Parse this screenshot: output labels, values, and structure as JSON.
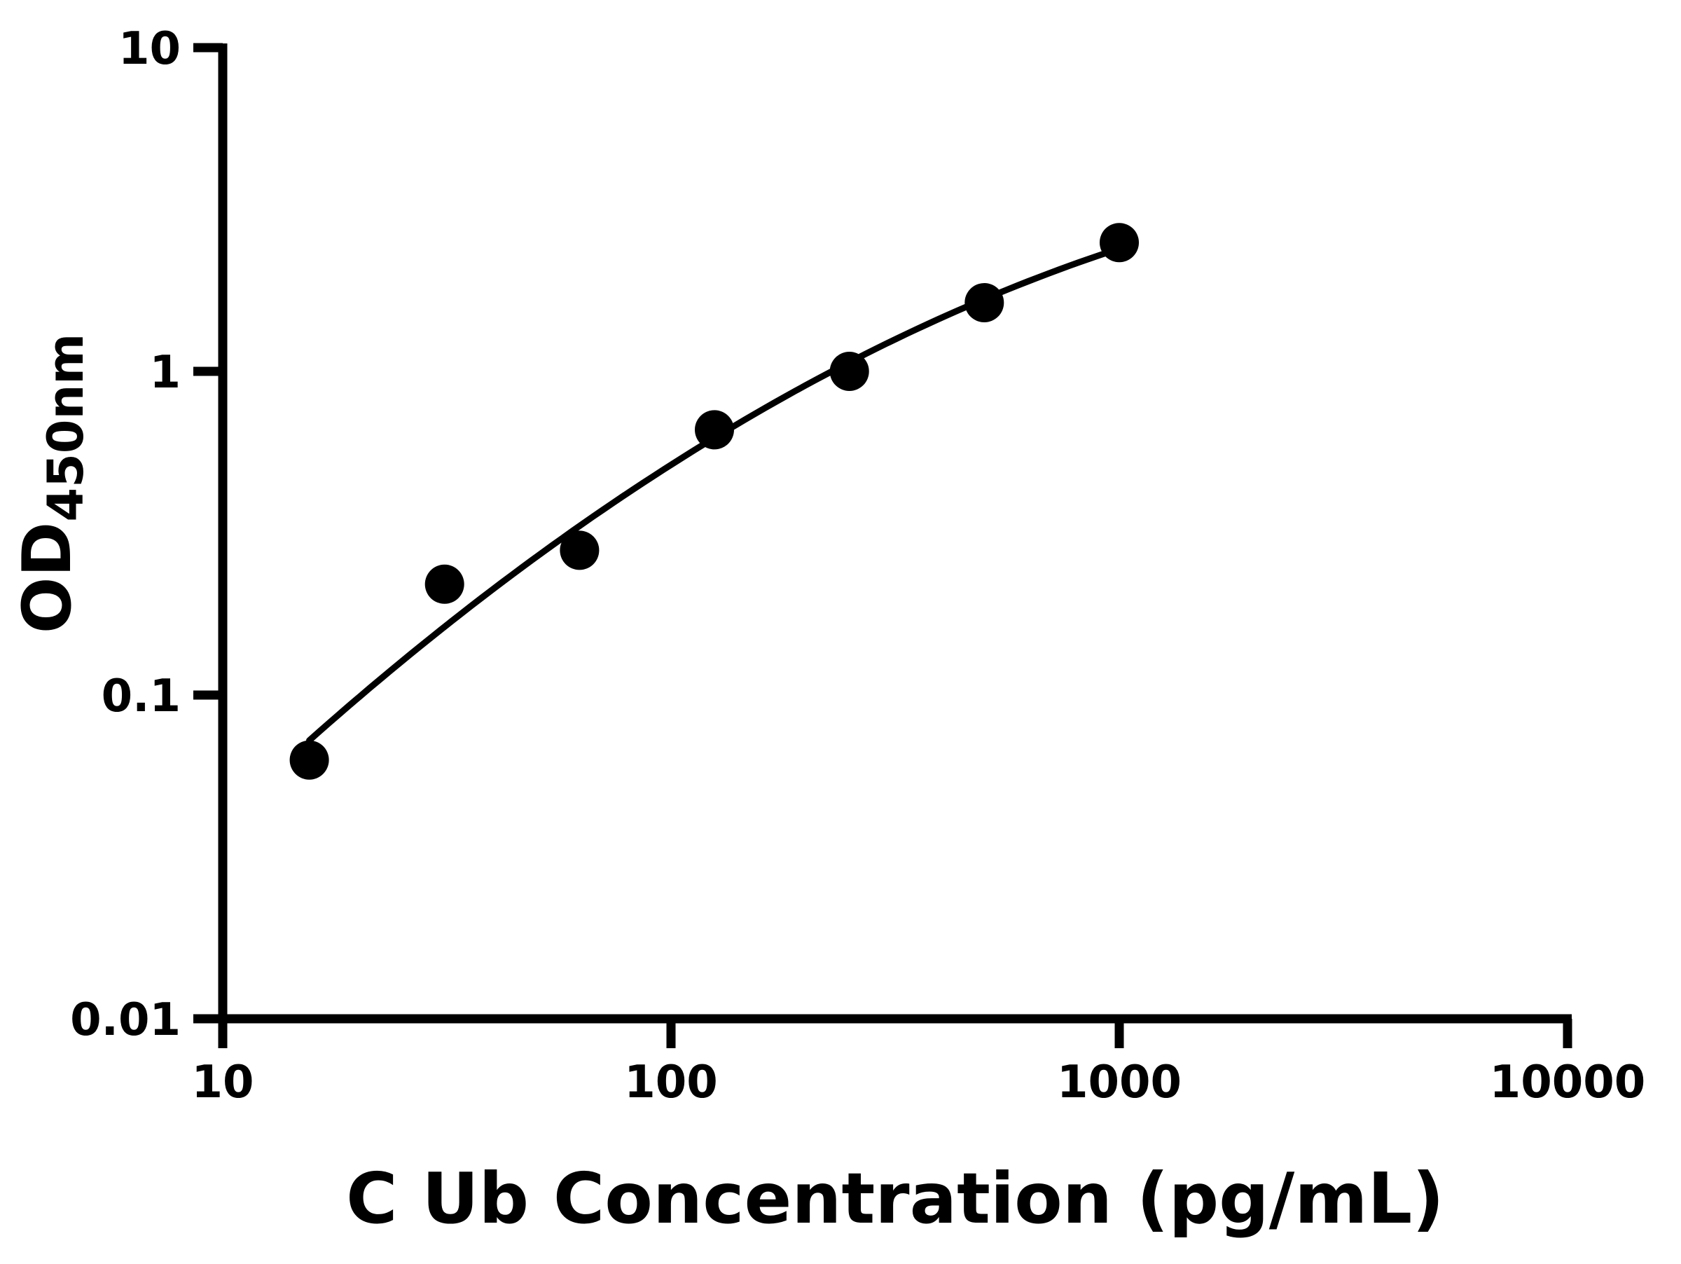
{
  "figure": {
    "background": "#ffffff",
    "foreground": "#000000"
  },
  "chart_data": {
    "type": "scatter",
    "title": "",
    "xlabel": "C Ub Concentration (pg/mL)",
    "ylabel_main": "OD",
    "ylabel_sub": "450nm",
    "x_scale": "log",
    "y_scale": "log",
    "xlim": [
      10,
      10000
    ],
    "ylim": [
      0.01,
      10
    ],
    "x_ticks": [
      10,
      100,
      1000,
      10000
    ],
    "x_tick_labels": [
      "10",
      "100",
      "1000",
      "10000"
    ],
    "y_ticks": [
      0.01,
      0.1,
      1,
      10
    ],
    "y_tick_labels": [
      "0.01",
      "0.1",
      "1",
      "10"
    ],
    "grid": false,
    "legend": false,
    "series": [
      {
        "name": "standard-curve-points",
        "x": [
          15.6,
          31.25,
          62.5,
          125,
          250,
          500,
          1000
        ],
        "y": [
          0.063,
          0.22,
          0.28,
          0.66,
          1.0,
          1.63,
          2.5
        ]
      }
    ],
    "fit": "smooth quadratic fit in log-log space drawn from first to last point",
    "marker_color": "#000000",
    "line_color": "#000000"
  }
}
